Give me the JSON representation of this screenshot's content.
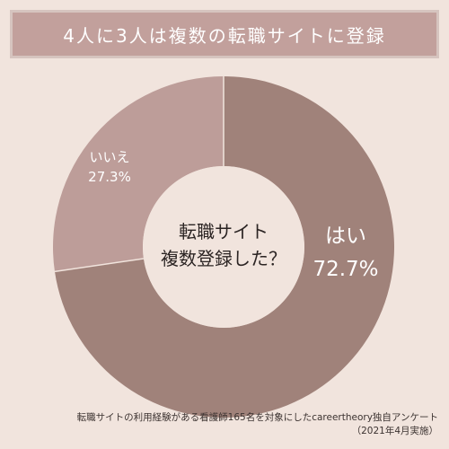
{
  "title": "4人に3人は複数の転職サイトに登録",
  "chart_data": {
    "type": "pie",
    "style": "donut",
    "center_label": [
      "転職サイト",
      "複数登録した？"
    ],
    "slices": [
      {
        "label": "はい",
        "value": 72.7,
        "value_label": "72.7%",
        "color": "#a0827a"
      },
      {
        "label": "いいえ",
        "value": 27.3,
        "value_label": "27.3%",
        "color": "#bd9d99"
      }
    ],
    "start": "top",
    "direction": "clockwise"
  },
  "footer": {
    "line1": "転職サイトの利用経験がある看護師165名を対象にしたcareertheory独自アンケート",
    "line2": "（2021年4月実施）"
  }
}
